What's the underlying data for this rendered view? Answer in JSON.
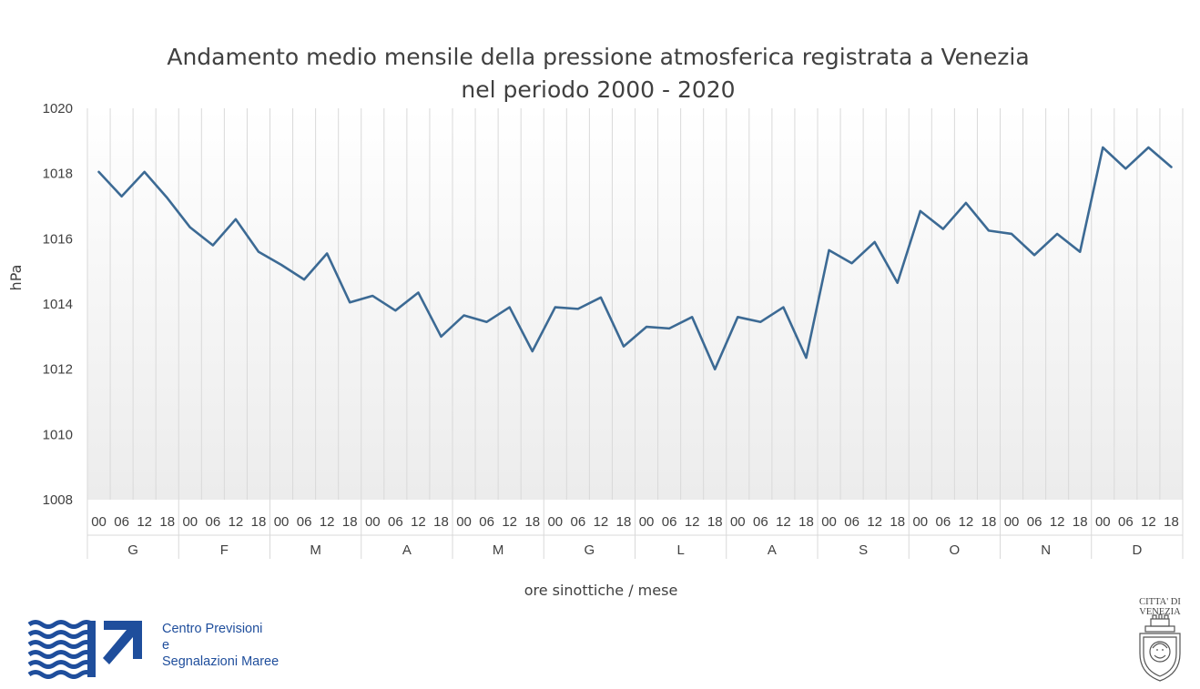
{
  "chart_data": {
    "type": "line",
    "title_lines": [
      "Andamento medio mensile della pressione atmosferica registrata a Venezia",
      "nel periodo 2000 - 2020"
    ],
    "xlabel": "ore sinottiche / mese",
    "ylabel": "hPa",
    "ylim": [
      1008,
      1020
    ],
    "yticks": [
      1008,
      1010,
      1012,
      1014,
      1016,
      1018,
      1020
    ],
    "grid": "vertical",
    "hours": [
      "00",
      "06",
      "12",
      "18"
    ],
    "months": [
      "G",
      "F",
      "M",
      "A",
      "M",
      "G",
      "L",
      "A",
      "S",
      "O",
      "N",
      "D"
    ],
    "series": [
      {
        "values": [
          1018.05,
          1017.3,
          1018.05,
          1017.25,
          1016.35,
          1015.8,
          1016.6,
          1015.6,
          1015.2,
          1014.75,
          1015.55,
          1014.05,
          1014.25,
          1013.8,
          1014.35,
          1013.0,
          1013.65,
          1013.45,
          1013.9,
          1012.55,
          1013.9,
          1013.85,
          1014.2,
          1012.7,
          1013.3,
          1013.25,
          1013.6,
          1012.0,
          1013.6,
          1013.45,
          1013.9,
          1012.35,
          1015.65,
          1015.25,
          1015.9,
          1014.65,
          1016.85,
          1016.3,
          1017.1,
          1016.25,
          1016.15,
          1015.5,
          1016.15,
          1015.6,
          1018.8,
          1018.15,
          1018.8,
          1018.2
        ],
        "color": "#3c6a94"
      }
    ]
  },
  "logo": {
    "lines": [
      "Centro Previsioni",
      "e",
      "Segnalazioni Maree"
    ],
    "color": "#1f4e9c"
  },
  "crest": {
    "lines": [
      "CITTA' DI",
      "VENEZIA"
    ]
  }
}
